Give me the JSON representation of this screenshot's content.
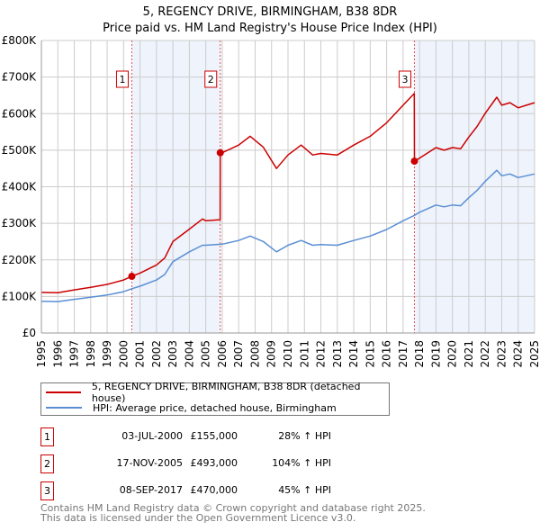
{
  "chart_data": {
    "type": "line",
    "title": "5, REGENCY DRIVE, BIRMINGHAM, B38 8DR",
    "subtitle": "Price paid vs. HM Land Registry's House Price Index (HPI)",
    "xlim": [
      1995,
      2025
    ],
    "ylim": [
      0,
      800000
    ],
    "yticks": [
      {
        "v": 0,
        "label": "£0"
      },
      {
        "v": 100000,
        "label": "£100K"
      },
      {
        "v": 200000,
        "label": "£200K"
      },
      {
        "v": 300000,
        "label": "£300K"
      },
      {
        "v": 400000,
        "label": "£400K"
      },
      {
        "v": 500000,
        "label": "£500K"
      },
      {
        "v": 600000,
        "label": "£600K"
      },
      {
        "v": 700000,
        "label": "£700K"
      },
      {
        "v": 800000,
        "label": "£800K"
      }
    ],
    "xticks": [
      "1995",
      "1996",
      "1997",
      "1998",
      "1999",
      "2000",
      "2001",
      "2002",
      "2003",
      "2004",
      "2005",
      "2006",
      "2007",
      "2008",
      "2009",
      "2010",
      "2011",
      "2012",
      "2013",
      "2014",
      "2015",
      "2016",
      "2017",
      "2018",
      "2019",
      "2020",
      "2021",
      "2022",
      "2023",
      "2024",
      "2025"
    ],
    "grid": true,
    "shaded_ranges": [
      [
        2000.5,
        2005.88
      ],
      [
        2017.69,
        2025
      ]
    ],
    "series": [
      {
        "name": "5, REGENCY DRIVE, BIRMINGHAM, B38 8DR (detached house)",
        "color": "#cc0000",
        "x": [
          1995,
          1996,
          1997,
          1998,
          1999,
          2000,
          2000.5,
          2001,
          2002,
          2002.5,
          2003,
          2004,
          2004.8,
          2005,
          2005.87,
          2005.88,
          2006,
          2007,
          2007.7,
          2008.5,
          2009.3,
          2010,
          2010.8,
          2011.5,
          2012,
          2013,
          2014,
          2015,
          2016,
          2017,
          2017.68,
          2017.69,
          2018,
          2019,
          2019.5,
          2020,
          2020.5,
          2021,
          2021.5,
          2022,
          2022.7,
          2023,
          2023.5,
          2024,
          2024.5,
          2025
        ],
        "y": [
          111000,
          110000,
          118000,
          125000,
          133000,
          145000,
          155000,
          164000,
          186000,
          205000,
          250000,
          284000,
          312000,
          307000,
          310000,
          493000,
          493000,
          514000,
          538000,
          508000,
          450000,
          487000,
          514000,
          487000,
          491000,
          487000,
          514000,
          538000,
          575000,
          623000,
          655000,
          470000,
          478000,
          507000,
          500000,
          507000,
          504000,
          536000,
          565000,
          601000,
          645000,
          623000,
          630000,
          616000,
          623000,
          630000
        ]
      },
      {
        "name": "HPI: Average price, detached house, Birmingham",
        "color": "#5b8fd4",
        "x": [
          1995,
          1996,
          1997,
          1998,
          1999,
          2000,
          2000.5,
          2001,
          2002,
          2002.5,
          2003,
          2004,
          2004.8,
          2005,
          2006,
          2007,
          2007.7,
          2008.5,
          2009.3,
          2010,
          2010.8,
          2011.5,
          2012,
          2013,
          2014,
          2015,
          2016,
          2017,
          2017.7,
          2018,
          2019,
          2019.5,
          2020,
          2020.5,
          2021,
          2021.5,
          2022,
          2022.7,
          2023,
          2023.5,
          2024,
          2024.5,
          2025
        ],
        "y": [
          87000,
          86000,
          92000,
          98000,
          104000,
          113000,
          121000,
          128000,
          145000,
          160000,
          195000,
          222000,
          240000,
          240000,
          243000,
          253000,
          265000,
          250000,
          222000,
          240000,
          253000,
          240000,
          242000,
          240000,
          253000,
          265000,
          283000,
          307000,
          322000,
          330000,
          350000,
          345000,
          350000,
          348000,
          370000,
          390000,
          415000,
          445000,
          430000,
          435000,
          425000,
          430000,
          435000
        ]
      }
    ],
    "sales": [
      {
        "label": "1",
        "x": 2000.5,
        "price": 155000,
        "date": "03-JUL-2000",
        "price_text": "£155,000",
        "hpi_text": "28% ↑ HPI"
      },
      {
        "label": "2",
        "x": 2005.88,
        "price": 493000,
        "date": "17-NOV-2005",
        "price_text": "£493,000",
        "hpi_text": "104% ↑ HPI"
      },
      {
        "label": "3",
        "x": 2017.69,
        "price": 470000,
        "date": "08-SEP-2017",
        "price_text": "£470,000",
        "hpi_text": "45% ↑ HPI"
      }
    ],
    "legend_position": "bottom"
  },
  "footer": {
    "line1": "Contains HM Land Registry data © Crown copyright and database right 2025.",
    "line2": "This data is licensed under the Open Government Licence v3.0."
  }
}
